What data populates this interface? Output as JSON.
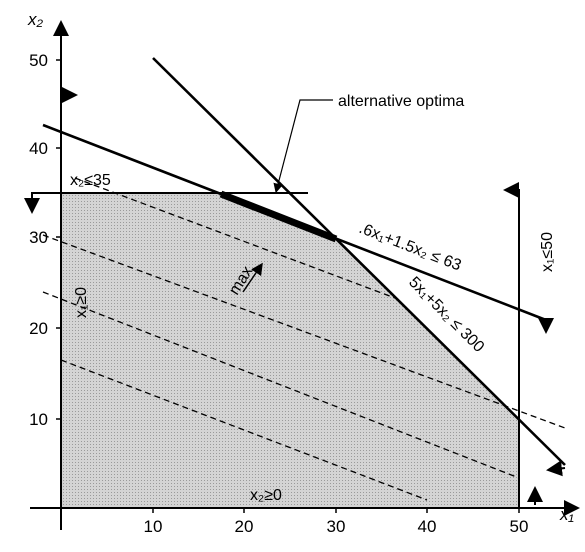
{
  "axes": {
    "x_label": "x₁",
    "y_label": "x₂",
    "x_ticks": [
      "10",
      "20",
      "30",
      "40",
      "50"
    ],
    "y_ticks": [
      "10",
      "20",
      "30",
      "40",
      "50"
    ]
  },
  "constraints": {
    "c1": "x₂≤35",
    "c2": "x₁≥0",
    "c3": ".6x₁+1.5x₂ ≤ 63",
    "c4": "5x₁+5x₂ ≤ 300",
    "c5": "x₁≤50",
    "c6": "x₂≥0"
  },
  "annotations": {
    "max": "max",
    "optima": "alternative optima"
  }
}
